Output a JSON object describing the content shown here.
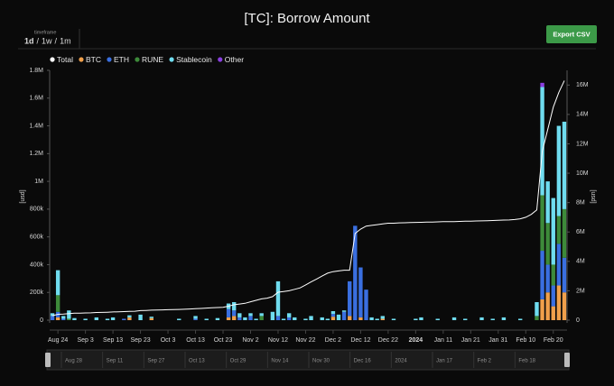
{
  "chart_data": {
    "type": "bar",
    "title": "[TC]: Borrow Amount",
    "button": "Export CSV",
    "timeframe": {
      "label": "timeframe",
      "options": [
        "1d",
        "1w",
        "1m"
      ],
      "separator": "/"
    },
    "ylabel": "[usd]",
    "y2label": "[usd]",
    "categories": [
      null,
      "Aug 24",
      null,
      null,
      null,
      null,
      "Sep 3",
      null,
      null,
      null,
      null,
      "Sep 13",
      null,
      null,
      null,
      null,
      "Sep 23",
      null,
      null,
      null,
      null,
      "Oct 3",
      null,
      null,
      null,
      null,
      "Oct 13",
      null,
      null,
      null,
      null,
      "Oct 23",
      null,
      null,
      null,
      null,
      "Nov 2",
      null,
      null,
      null,
      null,
      "Nov 12",
      null,
      null,
      null,
      null,
      "Nov 22",
      null,
      null,
      null,
      null,
      "Dec 2",
      null,
      null,
      null,
      null,
      "Dec 12",
      null,
      null,
      null,
      null,
      "Dec 22",
      null,
      null,
      null,
      null,
      "2024",
      null,
      null,
      null,
      null,
      "Jan 11",
      null,
      null,
      null,
      null,
      "Jan 21",
      null,
      null,
      null,
      null,
      "Jan 31",
      null,
      null,
      null,
      null,
      "Feb 10",
      null,
      null,
      null,
      null,
      "Feb 20",
      null,
      null
    ],
    "series": [
      {
        "name": "Total",
        "color": "#ffffff",
        "axis": "y2",
        "values": [
          300000,
          400000,
          420000,
          450000,
          470000,
          480000,
          490000,
          500000,
          520000,
          530000,
          540000,
          560000,
          570000,
          580000,
          600000,
          610000,
          650000,
          660000,
          680000,
          690000,
          700000,
          710000,
          720000,
          730000,
          740000,
          760000,
          780000,
          800000,
          820000,
          840000,
          860000,
          880000,
          950000,
          1050000,
          1100000,
          1150000,
          1250000,
          1350000,
          1450000,
          1500000,
          1600000,
          1900000,
          1950000,
          2000000,
          2100000,
          2200000,
          2400000,
          2600000,
          2800000,
          3000000,
          3200000,
          3300000,
          3350000,
          3400000,
          3400000,
          5900000,
          6200000,
          6400000,
          6450000,
          6500000,
          6550000,
          6600000,
          6600000,
          6620000,
          6630000,
          6640000,
          6650000,
          6660000,
          6670000,
          6680000,
          6690000,
          6700000,
          6700000,
          6710000,
          6720000,
          6730000,
          6740000,
          6750000,
          6760000,
          6770000,
          6780000,
          6800000,
          6810000,
          6820000,
          6850000,
          6900000,
          7000000,
          7200000,
          7500000,
          11500000,
          13000000,
          14500000,
          15500000,
          16300000
        ]
      },
      {
        "name": "BTC",
        "color": "#f0a04b",
        "values": [
          0,
          20000,
          0,
          0,
          0,
          0,
          0,
          0,
          0,
          0,
          0,
          0,
          0,
          0,
          20000,
          0,
          0,
          0,
          15000,
          0,
          0,
          0,
          0,
          0,
          0,
          0,
          0,
          0,
          0,
          0,
          0,
          0,
          20000,
          30000,
          0,
          0,
          0,
          0,
          0,
          0,
          0,
          0,
          0,
          0,
          0,
          0,
          0,
          0,
          0,
          0,
          0,
          25000,
          0,
          0,
          30000,
          0,
          20000,
          0,
          0,
          0,
          10000,
          0,
          0,
          0,
          0,
          0,
          0,
          0,
          0,
          0,
          0,
          0,
          0,
          0,
          0,
          0,
          0,
          0,
          0,
          0,
          0,
          0,
          0,
          0,
          0,
          0,
          0,
          0,
          0,
          150000,
          200000,
          100000,
          250000,
          200000
        ]
      },
      {
        "name": "ETH",
        "color": "#3a6fe0",
        "values": [
          30000,
          40000,
          10000,
          0,
          0,
          0,
          0,
          0,
          0,
          0,
          0,
          0,
          0,
          10000,
          0,
          0,
          0,
          0,
          0,
          0,
          0,
          0,
          0,
          0,
          0,
          0,
          10000,
          0,
          0,
          0,
          0,
          0,
          60000,
          40000,
          20000,
          0,
          30000,
          0,
          0,
          0,
          0,
          30000,
          0,
          20000,
          0,
          0,
          0,
          0,
          0,
          0,
          0,
          20000,
          0,
          60000,
          250000,
          680000,
          360000,
          220000,
          0,
          0,
          0,
          0,
          0,
          0,
          0,
          0,
          0,
          0,
          0,
          0,
          0,
          0,
          0,
          0,
          0,
          0,
          0,
          0,
          0,
          0,
          0,
          0,
          0,
          0,
          0,
          0,
          0,
          0,
          0,
          350000,
          200000,
          150000,
          300000,
          250000
        ]
      },
      {
        "name": "RUNE",
        "color": "#3d8a3a",
        "values": [
          0,
          120000,
          0,
          10000,
          0,
          0,
          0,
          0,
          0,
          0,
          0,
          0,
          0,
          0,
          0,
          0,
          0,
          0,
          0,
          0,
          0,
          0,
          0,
          0,
          0,
          0,
          0,
          0,
          0,
          0,
          0,
          0,
          0,
          0,
          0,
          0,
          0,
          0,
          30000,
          0,
          0,
          0,
          0,
          0,
          0,
          0,
          0,
          0,
          0,
          0,
          0,
          0,
          0,
          0,
          0,
          0,
          0,
          0,
          0,
          0,
          0,
          0,
          0,
          0,
          0,
          0,
          0,
          0,
          0,
          0,
          0,
          0,
          0,
          0,
          0,
          0,
          0,
          0,
          0,
          0,
          0,
          0,
          0,
          0,
          0,
          0,
          0,
          0,
          30000,
          400000,
          300000,
          150000,
          200000,
          350000
        ]
      },
      {
        "name": "Stablecoin",
        "color": "#6fdcef",
        "values": [
          20000,
          180000,
          20000,
          60000,
          15000,
          0,
          10000,
          0,
          20000,
          0,
          10000,
          20000,
          0,
          0,
          15000,
          0,
          40000,
          0,
          10000,
          0,
          0,
          0,
          0,
          10000,
          0,
          0,
          20000,
          0,
          10000,
          0,
          15000,
          0,
          40000,
          60000,
          30000,
          20000,
          20000,
          10000,
          20000,
          0,
          60000,
          250000,
          10000,
          30000,
          20000,
          0,
          10000,
          30000,
          0,
          20000,
          10000,
          20000,
          40000,
          10000,
          0,
          0,
          0,
          0,
          20000,
          10000,
          20000,
          0,
          10000,
          0,
          0,
          0,
          10000,
          20000,
          0,
          0,
          10000,
          0,
          0,
          20000,
          0,
          10000,
          0,
          0,
          20000,
          0,
          10000,
          0,
          20000,
          0,
          0,
          10000,
          0,
          0,
          100000,
          780000,
          300000,
          480000,
          650000,
          630000
        ]
      },
      {
        "name": "Other",
        "color": "#8a3fe0",
        "values": [
          0,
          0,
          0,
          0,
          0,
          0,
          0,
          0,
          0,
          0,
          0,
          0,
          0,
          0,
          0,
          0,
          0,
          0,
          0,
          0,
          0,
          0,
          0,
          0,
          0,
          0,
          0,
          0,
          0,
          0,
          0,
          0,
          0,
          0,
          0,
          0,
          0,
          0,
          0,
          0,
          0,
          0,
          0,
          0,
          0,
          0,
          0,
          0,
          0,
          0,
          0,
          0,
          0,
          0,
          0,
          0,
          0,
          0,
          0,
          0,
          0,
          0,
          0,
          0,
          0,
          0,
          0,
          0,
          0,
          0,
          0,
          0,
          0,
          0,
          0,
          0,
          0,
          0,
          0,
          0,
          0,
          0,
          0,
          0,
          0,
          0,
          0,
          0,
          0,
          30000,
          0,
          0,
          0,
          0
        ]
      }
    ],
    "ylim": [
      0,
      1800000
    ],
    "yticks": [
      0,
      {
        "value": 200000,
        "label": "200k"
      },
      {
        "value": 400000,
        "label": "400k"
      },
      {
        "value": 600000,
        "label": "600k"
      },
      {
        "value": 800000,
        "label": "800k"
      },
      {
        "value": 1000000,
        "label": "1M"
      },
      {
        "value": 1200000,
        "label": "1.2M"
      },
      {
        "value": 1400000,
        "label": "1.4M"
      },
      {
        "value": 1600000,
        "label": "1.6M"
      },
      {
        "value": 1800000,
        "label": "1.8M"
      }
    ],
    "y2lim": [
      0,
      17000000
    ],
    "y2ticks": [
      0,
      {
        "value": 2000000,
        "label": "2M"
      },
      {
        "value": 4000000,
        "label": "4M"
      },
      {
        "value": 6000000,
        "label": "6M"
      },
      {
        "value": 8000000,
        "label": "8M"
      },
      {
        "value": 10000000,
        "label": "10M"
      },
      {
        "value": 12000000,
        "label": "12M"
      },
      {
        "value": 14000000,
        "label": "14M"
      },
      {
        "value": 16000000,
        "label": "16M"
      }
    ],
    "grid": false,
    "navigator": [
      "Aug 28",
      "Sep 11",
      "Sep 27",
      "Oct 13",
      "Oct 29",
      "Nov 14",
      "Nov 30",
      "Dec 16",
      "2024",
      "Jan 17",
      "Feb 2",
      "Feb 18"
    ]
  }
}
